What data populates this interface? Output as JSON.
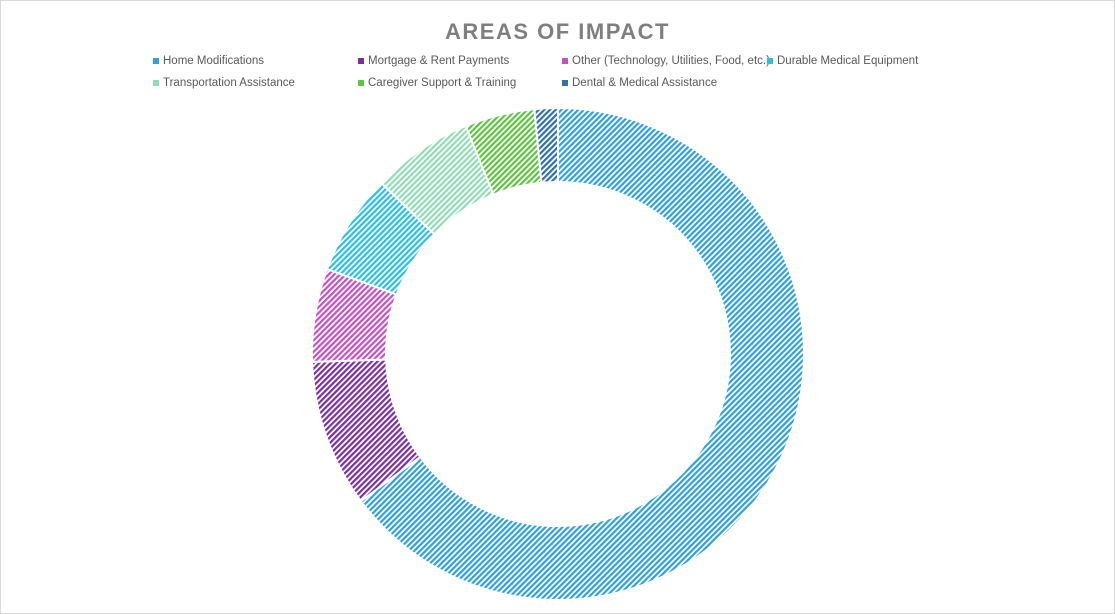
{
  "chart_data": {
    "type": "pie",
    "subtype": "donut",
    "title": "AREAS OF IMPACT",
    "legend_position": "top",
    "fill_style": "diagonal-hatch",
    "categories": [
      "Home Modifications",
      "Mortgage & Rent Payments",
      "Other (Technology, Utilities, Food, etc.)",
      "Durable Medical Equipment",
      "Transportation Assistance",
      "Caregiver Support & Training",
      "Dental & Medical Assistance"
    ],
    "values": [
      63.5,
      9.5,
      6.0,
      6.5,
      6.5,
      4.5,
      1.5
    ],
    "colors": [
      "#2e9fe0",
      "#7a2fa3",
      "#c44fc6",
      "#27c0e6",
      "#8fdcb5",
      "#5cc43e",
      "#2e6fb0"
    ]
  }
}
